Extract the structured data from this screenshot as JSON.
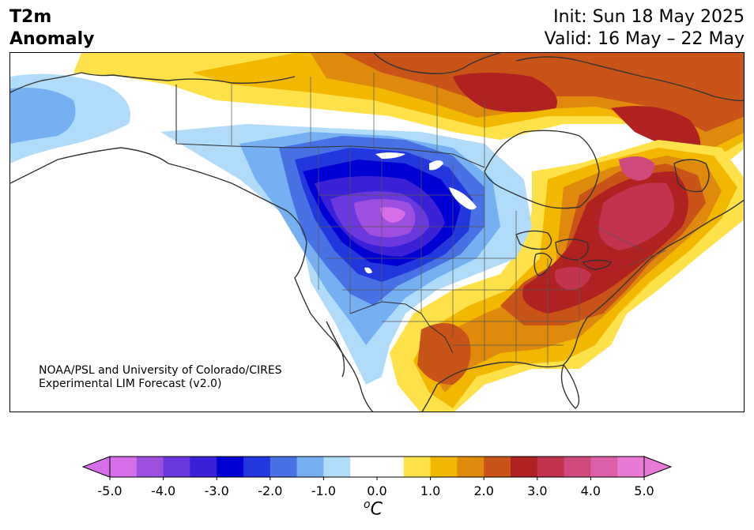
{
  "header": {
    "title_line1": "T2m",
    "title_line2": "Anomaly",
    "init": "Init: Sun 18 May 2025",
    "valid": "Valid: 16 May – 22 May"
  },
  "credit": {
    "line1": "NOAA/PSL and University of Colorado/CIRES",
    "line2": "Experimental LIM Forecast (v2.0)"
  },
  "colorbar": {
    "tick_labels": [
      "-5.0",
      "-4.0",
      "-3.0",
      "-2.0",
      "-1.0",
      "0.0",
      "1.0",
      "2.0",
      "3.0",
      "4.0",
      "5.0"
    ],
    "unit_base": "C",
    "unit_prefix": "o",
    "levels": [
      -5,
      -4.5,
      -4,
      -3.5,
      -3,
      -2.5,
      -2,
      -1.5,
      -1,
      -0.5,
      0.5,
      1,
      1.5,
      2,
      2.5,
      3,
      3.5,
      4,
      4.5,
      5
    ],
    "colors": [
      "#d56ee8",
      "#9d50dd",
      "#6a38dc",
      "#3a20d6",
      "#0000d4",
      "#2237dd",
      "#4a71e4",
      "#76b0f2",
      "#b0dcfa",
      "#ffffff",
      "#ffe24a",
      "#f2b800",
      "#df8a0c",
      "#c85418",
      "#b02222",
      "#c2344e",
      "#cf4a7c",
      "#dc5ea8",
      "#e87ad6"
    ]
  },
  "map": {
    "features": [
      "t2m-anomaly-shading",
      "coastlines",
      "country-borders",
      "state-province-borders"
    ]
  }
}
